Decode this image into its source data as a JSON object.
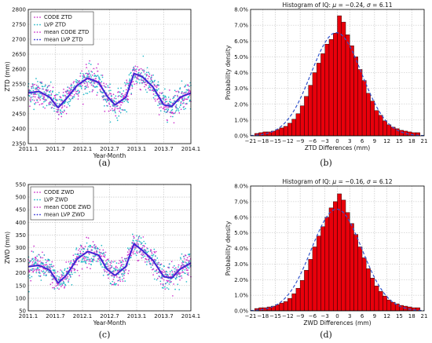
{
  "chart_data": [
    {
      "panel": "(a)",
      "type": "scatter",
      "xlabel": "Year-Month",
      "ylabel": "ZTD (mm)",
      "x_tick_labels": [
        "2011.1",
        "2011.7",
        "2012.1",
        "2012.7",
        "2013.1",
        "2013.7",
        "2014.1"
      ],
      "xlim": [
        2011.1,
        2014.1
      ],
      "y_ticks": [
        2350,
        2400,
        2450,
        2500,
        2550,
        2600,
        2650,
        2700,
        2750,
        2800
      ],
      "ylim": [
        2350,
        2800
      ],
      "grid": true,
      "legend_position": "top-left",
      "series": [
        {
          "name": "CODE ZTD",
          "color": "#cc33cc",
          "style": "dots"
        },
        {
          "name": "LVP ZTD",
          "color": "#22b8c8",
          "style": "dots"
        },
        {
          "name": "mean CODE ZTD",
          "color": "#cc33cc",
          "style": "smoothed"
        },
        {
          "name": "mean LVP ZTD",
          "color": "#2b2bd6",
          "style": "smoothed"
        }
      ],
      "mean_curve": {
        "x": [
          2011.1,
          2011.3,
          2011.5,
          2011.65,
          2011.8,
          2012.0,
          2012.2,
          2012.4,
          2012.55,
          2012.7,
          2012.9,
          2013.05,
          2013.2,
          2013.4,
          2013.6,
          2013.75,
          2013.9,
          2014.1
        ],
        "y": [
          2520,
          2525,
          2505,
          2470,
          2500,
          2545,
          2570,
          2555,
          2510,
          2480,
          2505,
          2585,
          2575,
          2540,
          2480,
          2475,
          2505,
          2520
        ]
      },
      "scatter_spread": 40
    },
    {
      "panel": "(b)",
      "type": "bar",
      "title": "Histogram of IQ: μ = −0.24, σ = 6.11",
      "title_prefix": "Histogram of IQ: ",
      "mu": "−0.24",
      "sigma": "6.11",
      "xlabel": "ZTD Differences (mm)",
      "ylabel": "Probability density",
      "x_tick_labels": [
        "−21",
        "−18",
        "−15",
        "−12",
        "−9",
        "−6",
        "−3",
        "0",
        "3",
        "6",
        "9",
        "12",
        "15",
        "18",
        "21"
      ],
      "xlim": [
        -21,
        21
      ],
      "y_tick_labels": [
        "0.0%",
        "1.0%",
        "2.0%",
        "3.0%",
        "4.0%",
        "5.0%",
        "6.0%",
        "7.0%",
        "8.0%"
      ],
      "ylim": [
        0,
        8
      ],
      "bin_start": -20,
      "bin_width": 1,
      "values": [
        0.15,
        0.2,
        0.25,
        0.25,
        0.3,
        0.4,
        0.5,
        0.6,
        0.8,
        1.05,
        1.4,
        1.9,
        2.5,
        3.2,
        4.0,
        4.6,
        5.2,
        5.8,
        6.1,
        6.5,
        7.6,
        7.2,
        6.4,
        5.7,
        5.0,
        4.2,
        3.5,
        2.7,
        2.2,
        1.6,
        1.3,
        0.95,
        0.7,
        0.55,
        0.45,
        0.35,
        0.3,
        0.25,
        0.2,
        0.2
      ],
      "fit_curve": {
        "mean": -0.24,
        "sd": 6.11,
        "style": "dashed",
        "color": "#3355cc"
      },
      "bar_color": "#e8000b",
      "grid": true
    },
    {
      "panel": "(c)",
      "type": "scatter",
      "xlabel": "Year-Month",
      "ylabel": "ZWD (mm)",
      "x_tick_labels": [
        "2011.1",
        "2011.7",
        "2012.1",
        "2012.7",
        "2013.1",
        "2013.7",
        "2014.1"
      ],
      "xlim": [
        2011.1,
        2014.1
      ],
      "y_ticks": [
        50,
        100,
        150,
        200,
        250,
        300,
        350,
        400,
        450,
        500,
        550
      ],
      "ylim": [
        50,
        550
      ],
      "grid": true,
      "legend_position": "top-left",
      "series": [
        {
          "name": "CODE ZWD",
          "color": "#cc33cc",
          "style": "dots"
        },
        {
          "name": "LVP ZWD",
          "color": "#22b8c8",
          "style": "dots"
        },
        {
          "name": "mean CODE ZWD",
          "color": "#cc33cc",
          "style": "smoothed"
        },
        {
          "name": "mean LVP ZWD",
          "color": "#2b2bd6",
          "style": "smoothed"
        }
      ],
      "mean_curve": {
        "x": [
          2011.1,
          2011.3,
          2011.5,
          2011.65,
          2011.8,
          2012.0,
          2012.2,
          2012.4,
          2012.55,
          2012.7,
          2012.9,
          2013.05,
          2013.2,
          2013.4,
          2013.6,
          2013.75,
          2013.9,
          2014.1
        ],
        "y": [
          225,
          230,
          210,
          160,
          190,
          255,
          285,
          270,
          215,
          190,
          225,
          315,
          290,
          250,
          185,
          180,
          215,
          240
        ]
      },
      "scatter_spread": 45
    },
    {
      "panel": "(d)",
      "type": "bar",
      "title": "Histogram of IQ: μ = −0.16, σ = 6.12",
      "title_prefix": "Histogram of IQ: ",
      "mu": "−0.16",
      "sigma": "6.12",
      "xlabel": "ZWD Differences (mm)",
      "ylabel": "Probability density",
      "x_tick_labels": [
        "−21",
        "−18",
        "−15",
        "−12",
        "−9",
        "−6",
        "−3",
        "0",
        "3",
        "6",
        "9",
        "12",
        "15",
        "18",
        "21"
      ],
      "xlim": [
        -21,
        21
      ],
      "y_tick_labels": [
        "0.0%",
        "1.0%",
        "2.0%",
        "3.0%",
        "4.0%",
        "5.0%",
        "6.0%",
        "7.0%",
        "8.0%"
      ],
      "ylim": [
        0,
        8
      ],
      "bin_start": -20,
      "bin_width": 1,
      "values": [
        0.15,
        0.2,
        0.2,
        0.25,
        0.3,
        0.4,
        0.5,
        0.6,
        0.8,
        1.1,
        1.45,
        1.95,
        2.6,
        3.3,
        4.1,
        4.8,
        5.4,
        6.0,
        6.6,
        7.0,
        7.5,
        7.1,
        6.3,
        5.6,
        4.9,
        4.1,
        3.4,
        2.7,
        2.1,
        1.6,
        1.25,
        0.95,
        0.7,
        0.55,
        0.45,
        0.35,
        0.3,
        0.25,
        0.2,
        0.2
      ],
      "fit_curve": {
        "mean": -0.16,
        "sd": 6.12,
        "style": "dashed",
        "color": "#3355cc"
      },
      "bar_color": "#e8000b",
      "grid": true
    }
  ]
}
